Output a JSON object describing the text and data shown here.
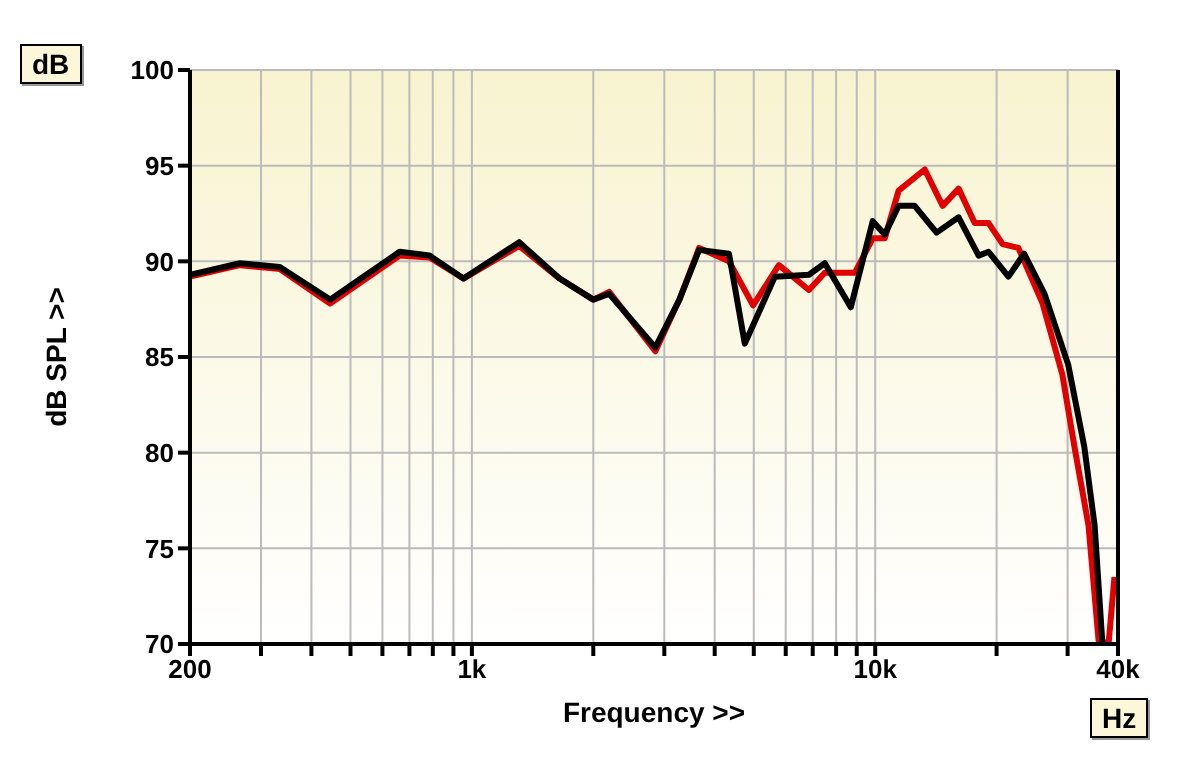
{
  "chart_data": {
    "type": "line",
    "xlabel": "Frequency >>",
    "ylabel": "dB SPL >>",
    "annotations": [
      "dB",
      "Hz"
    ],
    "log": "x",
    "grid": true,
    "legend": false,
    "marker": "none",
    "line_style": "solid",
    "xlim": [
      200,
      40000
    ],
    "ylim": [
      70,
      100
    ],
    "xticks": [
      {
        "value": 200,
        "label": "200"
      },
      {
        "value": 300,
        "label": null
      },
      {
        "value": 400,
        "label": null
      },
      {
        "value": 500,
        "label": null
      },
      {
        "value": 600,
        "label": null
      },
      {
        "value": 700,
        "label": null
      },
      {
        "value": 800,
        "label": null
      },
      {
        "value": 900,
        "label": null
      },
      {
        "value": 1000,
        "label": "1k"
      },
      {
        "value": 2000,
        "label": null
      },
      {
        "value": 3000,
        "label": null
      },
      {
        "value": 4000,
        "label": null
      },
      {
        "value": 5000,
        "label": null
      },
      {
        "value": 6000,
        "label": null
      },
      {
        "value": 7000,
        "label": null
      },
      {
        "value": 8000,
        "label": null
      },
      {
        "value": 9000,
        "label": null
      },
      {
        "value": 10000,
        "label": "10k"
      },
      {
        "value": 20000,
        "label": null
      },
      {
        "value": 30000,
        "label": null
      },
      {
        "value": 40000,
        "label": "40k"
      }
    ],
    "yticks": [
      70,
      75,
      80,
      85,
      90,
      95,
      100
    ],
    "series": [
      {
        "color": "#e00000",
        "x": [
          200,
          266,
          334,
          445,
          662,
          785,
          953,
          1310,
          1650,
          2000,
          2190,
          2850,
          3270,
          3660,
          4340,
          4980,
          5770,
          6850,
          7500,
          8900,
          9860,
          10560,
          11430,
          13270,
          14700,
          16100,
          17650,
          19100,
          20700,
          22650,
          26000,
          29100,
          31200,
          33800,
          35800,
          37900,
          39200
        ],
        "values": [
          89.2,
          89.8,
          89.6,
          87.8,
          90.3,
          90.2,
          89.1,
          90.8,
          89.1,
          88.0,
          88.4,
          85.3,
          88.0,
          90.7,
          90.0,
          87.7,
          89.8,
          88.5,
          89.4,
          89.4,
          91.2,
          91.2,
          93.7,
          94.8,
          92.9,
          93.8,
          92.0,
          92.0,
          90.9,
          90.7,
          87.8,
          84.1,
          80.3,
          76.2,
          70.2,
          70.0,
          73.5
        ]
      },
      {
        "color": "#000000",
        "x": [
          200,
          266,
          334,
          445,
          662,
          785,
          953,
          1310,
          1650,
          2000,
          2190,
          2850,
          3270,
          3660,
          4340,
          4750,
          5640,
          6850,
          7500,
          8700,
          9860,
          10560,
          11430,
          12530,
          14200,
          16100,
          18050,
          19100,
          21400,
          23400,
          26300,
          30100,
          33000,
          35000,
          36600
        ],
        "values": [
          89.3,
          89.9,
          89.7,
          88.0,
          90.5,
          90.3,
          89.1,
          91.0,
          89.1,
          88.0,
          88.3,
          85.5,
          88.0,
          90.6,
          90.4,
          85.7,
          89.2,
          89.3,
          89.9,
          87.6,
          92.1,
          91.4,
          92.9,
          92.9,
          91.5,
          92.3,
          90.3,
          90.5,
          89.2,
          90.4,
          88.3,
          84.6,
          80.3,
          76.2,
          70.0
        ]
      }
    ]
  }
}
